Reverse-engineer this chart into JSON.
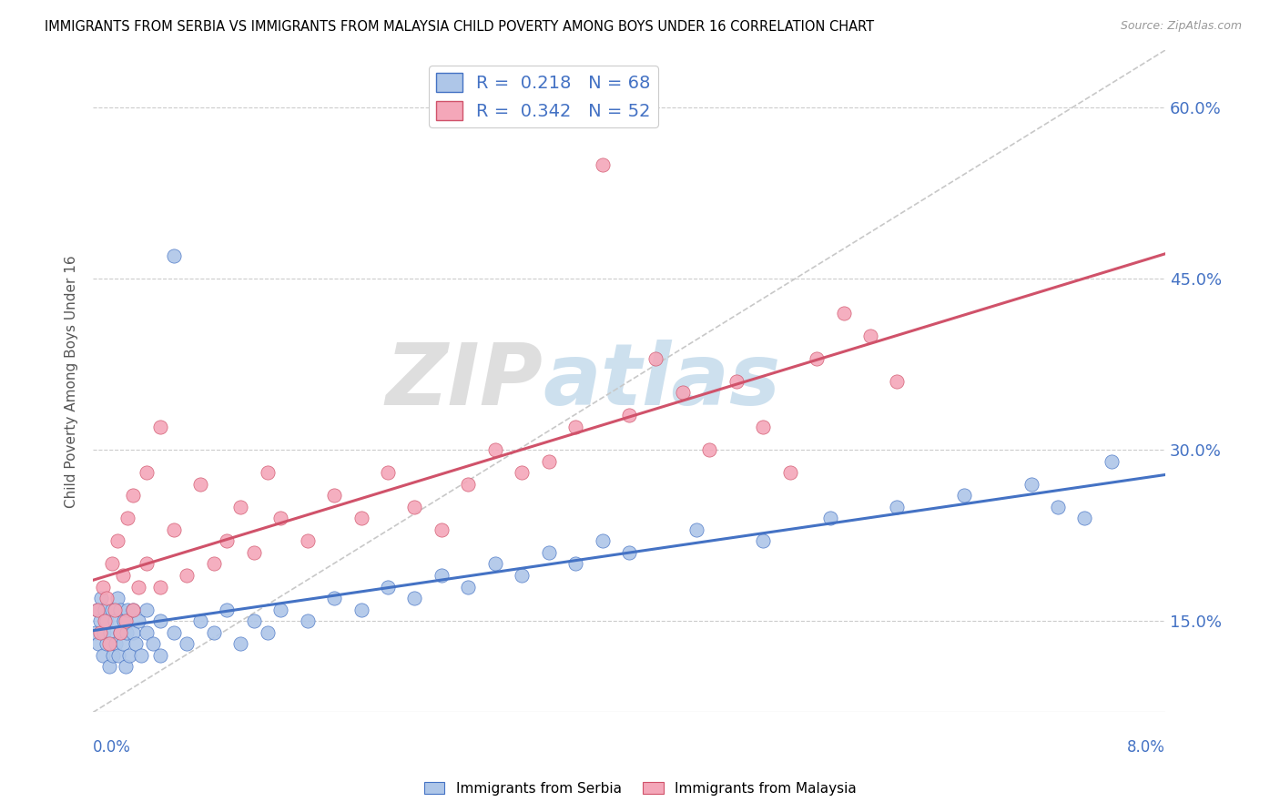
{
  "title": "IMMIGRANTS FROM SERBIA VS IMMIGRANTS FROM MALAYSIA CHILD POVERTY AMONG BOYS UNDER 16 CORRELATION CHART",
  "source": "Source: ZipAtlas.com",
  "ylabel": "Child Poverty Among Boys Under 16",
  "yticks": [
    0.15,
    0.3,
    0.45,
    0.6
  ],
  "ytick_labels": [
    "15.0%",
    "30.0%",
    "45.0%",
    "60.0%"
  ],
  "xlim": [
    0.0,
    0.08
  ],
  "ylim": [
    0.07,
    0.65
  ],
  "R_serbia": 0.218,
  "N_serbia": 68,
  "R_malaysia": 0.342,
  "N_malaysia": 52,
  "color_serbia": "#aec6e8",
  "color_malaysia": "#f4a7b9",
  "line_color_serbia": "#4472c4",
  "line_color_malaysia": "#d0526a",
  "line_color_diagonal": "#c8c8c8",
  "watermark_zip": "ZIP",
  "watermark_atlas": "atlas",
  "serbia_x": [
    0.0002,
    0.0003,
    0.0004,
    0.0005,
    0.0006,
    0.0007,
    0.0008,
    0.0009,
    0.001,
    0.001,
    0.0012,
    0.0013,
    0.0014,
    0.0015,
    0.0016,
    0.0017,
    0.0018,
    0.0019,
    0.002,
    0.002,
    0.0022,
    0.0023,
    0.0024,
    0.0025,
    0.0026,
    0.0027,
    0.003,
    0.003,
    0.0032,
    0.0034,
    0.0036,
    0.004,
    0.004,
    0.0045,
    0.005,
    0.005,
    0.006,
    0.006,
    0.007,
    0.008,
    0.009,
    0.01,
    0.011,
    0.012,
    0.013,
    0.014,
    0.016,
    0.018,
    0.02,
    0.022,
    0.024,
    0.026,
    0.028,
    0.03,
    0.032,
    0.034,
    0.036,
    0.038,
    0.04,
    0.045,
    0.05,
    0.055,
    0.06,
    0.065,
    0.07,
    0.072,
    0.074,
    0.076
  ],
  "serbia_y": [
    0.14,
    0.16,
    0.13,
    0.15,
    0.17,
    0.12,
    0.14,
    0.16,
    0.13,
    0.15,
    0.11,
    0.14,
    0.16,
    0.12,
    0.15,
    0.13,
    0.17,
    0.12,
    0.14,
    0.16,
    0.13,
    0.15,
    0.11,
    0.14,
    0.16,
    0.12,
    0.14,
    0.16,
    0.13,
    0.15,
    0.12,
    0.14,
    0.16,
    0.13,
    0.15,
    0.12,
    0.14,
    0.47,
    0.13,
    0.15,
    0.14,
    0.16,
    0.13,
    0.15,
    0.14,
    0.16,
    0.15,
    0.17,
    0.16,
    0.18,
    0.17,
    0.19,
    0.18,
    0.2,
    0.19,
    0.21,
    0.2,
    0.22,
    0.21,
    0.23,
    0.22,
    0.24,
    0.25,
    0.26,
    0.27,
    0.25,
    0.24,
    0.29
  ],
  "malaysia_x": [
    0.0003,
    0.0005,
    0.0007,
    0.0009,
    0.001,
    0.0012,
    0.0014,
    0.0016,
    0.0018,
    0.002,
    0.0022,
    0.0024,
    0.0026,
    0.003,
    0.003,
    0.0034,
    0.004,
    0.004,
    0.005,
    0.005,
    0.006,
    0.007,
    0.008,
    0.009,
    0.01,
    0.011,
    0.012,
    0.013,
    0.014,
    0.016,
    0.018,
    0.02,
    0.022,
    0.024,
    0.026,
    0.028,
    0.03,
    0.032,
    0.034,
    0.036,
    0.038,
    0.04,
    0.042,
    0.044,
    0.046,
    0.048,
    0.05,
    0.052,
    0.054,
    0.056,
    0.058,
    0.06
  ],
  "malaysia_y": [
    0.16,
    0.14,
    0.18,
    0.15,
    0.17,
    0.13,
    0.2,
    0.16,
    0.22,
    0.14,
    0.19,
    0.15,
    0.24,
    0.16,
    0.26,
    0.18,
    0.2,
    0.28,
    0.18,
    0.32,
    0.23,
    0.19,
    0.27,
    0.2,
    0.22,
    0.25,
    0.21,
    0.28,
    0.24,
    0.22,
    0.26,
    0.24,
    0.28,
    0.25,
    0.23,
    0.27,
    0.3,
    0.28,
    0.29,
    0.32,
    0.55,
    0.33,
    0.38,
    0.35,
    0.3,
    0.36,
    0.32,
    0.28,
    0.38,
    0.42,
    0.4,
    0.36
  ]
}
